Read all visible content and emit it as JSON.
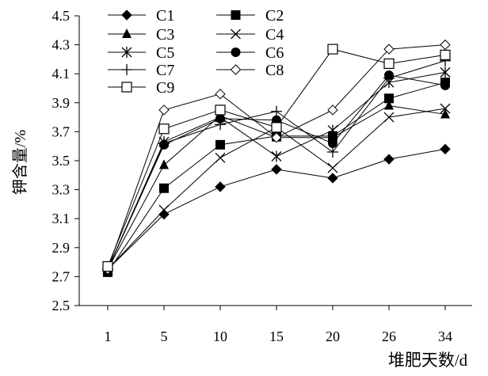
{
  "chart_data": {
    "type": "line",
    "title": "",
    "xlabel": "堆肥天数/d",
    "ylabel": "钾含量/%",
    "categories": [
      "1",
      "5",
      "10",
      "15",
      "20",
      "26",
      "34"
    ],
    "ylim": [
      2.5,
      4.5
    ],
    "yticks": [
      "2.5",
      "2.7",
      "2.9",
      "3.1",
      "3.3",
      "3.5",
      "3.7",
      "3.9",
      "4.1",
      "4.3",
      "4.5"
    ],
    "grid": false,
    "legend_position": "top-left",
    "series": [
      {
        "name": "C1",
        "marker": "diamond-filled",
        "values": [
          2.75,
          3.13,
          3.32,
          3.44,
          3.38,
          3.51,
          3.58
        ]
      },
      {
        "name": "C2",
        "marker": "square-filled",
        "values": [
          2.73,
          3.31,
          3.61,
          3.67,
          3.67,
          3.93,
          4.04
        ]
      },
      {
        "name": "C3",
        "marker": "triangle-filled",
        "values": [
          2.75,
          3.47,
          3.81,
          3.66,
          3.66,
          3.88,
          3.82
        ]
      },
      {
        "name": "C4",
        "marker": "x",
        "values": [
          2.75,
          3.16,
          3.52,
          3.73,
          3.45,
          3.8,
          3.86
        ]
      },
      {
        "name": "C5",
        "marker": "asterisk",
        "values": [
          2.75,
          3.63,
          3.8,
          3.53,
          3.71,
          4.04,
          4.11
        ]
      },
      {
        "name": "C6",
        "marker": "circle-filled",
        "values": [
          2.75,
          3.61,
          3.79,
          3.78,
          3.62,
          4.09,
          4.02
        ]
      },
      {
        "name": "C7",
        "marker": "plus",
        "values": [
          2.75,
          3.62,
          3.75,
          3.84,
          3.56,
          4.07,
          4.19
        ]
      },
      {
        "name": "C8",
        "marker": "diamond-open",
        "values": [
          2.75,
          3.85,
          3.96,
          3.66,
          3.85,
          4.27,
          4.3
        ]
      },
      {
        "name": "C9",
        "marker": "square-open",
        "values": [
          2.77,
          3.72,
          3.85,
          3.73,
          4.27,
          4.17,
          4.23
        ]
      }
    ]
  }
}
